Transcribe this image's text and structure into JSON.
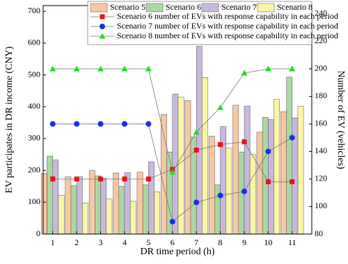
{
  "chart_data": {
    "type": "bar_line",
    "x_label": "DR time period (h)",
    "y_label": "EV participates in DR income (CNY)",
    "y2_label": "Number of EV (vehicles)",
    "categories": [
      "1",
      "2",
      "3",
      "4",
      "5",
      "6",
      "7",
      "8",
      "9",
      "10",
      "11"
    ],
    "ylim": [
      0,
      718
    ],
    "yticks": [
      0,
      100,
      200,
      300,
      400,
      500,
      600,
      700
    ],
    "y2lim": [
      80,
      246
    ],
    "y2ticks": [
      80,
      100,
      120,
      140,
      160,
      180,
      200,
      220,
      240
    ],
    "series": [
      {
        "name": "Scenario 5",
        "type": "bar",
        "color": "#f9c6a2",
        "values": [
          190,
          180,
          200,
          192,
          195,
          376,
          420,
          308,
          405,
          320,
          385
        ]
      },
      {
        "name": "Scenario 6",
        "type": "bar",
        "color": "#a9d8a0",
        "values": [
          245,
          152,
          183,
          150,
          155,
          258,
          305,
          155,
          258,
          367,
          493
        ]
      },
      {
        "name": "Scenario 7",
        "type": "bar",
        "color": "#c8b8de",
        "values": [
          233,
          180,
          175,
          193,
          227,
          440,
          590,
          338,
          402,
          360,
          365
        ]
      },
      {
        "name": "Scenario 8",
        "type": "bar",
        "color": "#fbf5a8",
        "values": [
          122,
          98,
          110,
          103,
          133,
          430,
          492,
          270,
          250,
          423,
          402
        ]
      },
      {
        "name": "Scenario 6 number of EVs with response capability in each period",
        "type": "line",
        "axis": "y2",
        "marker": "square",
        "color": "#ee1111",
        "values": [
          120,
          120,
          120,
          120,
          120,
          127,
          141,
          145,
          147,
          118,
          118
        ]
      },
      {
        "name": "Scenario 7 number of EVs with response capability in each period",
        "type": "line",
        "axis": "y2",
        "marker": "circle",
        "color": "#1133ee",
        "values": [
          160,
          160,
          160,
          160,
          160,
          89,
          103,
          108,
          111,
          140,
          150
        ]
      },
      {
        "name": "Scenario 8 number of EVs with response capability in each period",
        "type": "line",
        "axis": "y2",
        "marker": "triangle",
        "color": "#22dd22",
        "values": [
          200,
          200,
          200,
          200,
          200,
          125,
          154,
          172,
          197,
          200,
          200
        ]
      }
    ]
  }
}
